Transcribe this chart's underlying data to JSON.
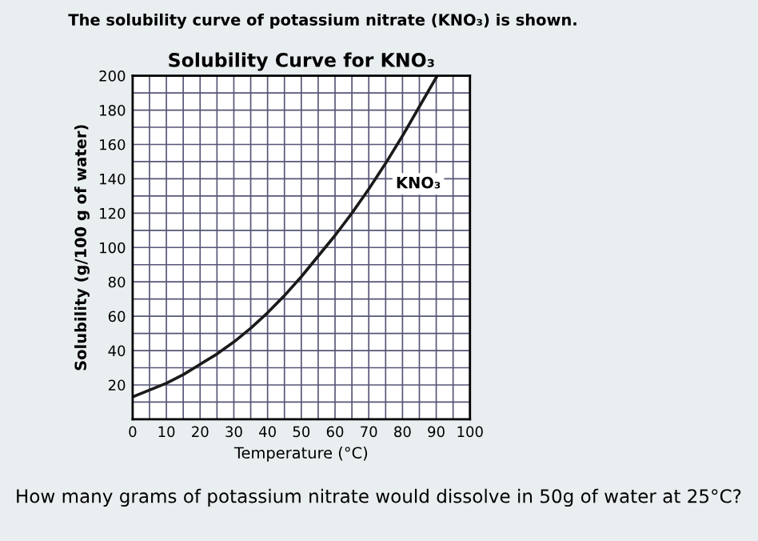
{
  "chart_data": {
    "type": "line",
    "title": "Solubility Curve for KNO₃",
    "xlabel": "Temperature (°C)",
    "ylabel": "Solubility (g/100 g of water)",
    "annotations": [
      "The solubility curve of potassium nitrate (KNO₃) is shown.",
      "How many grams of potassium nitrate would dissolve in 50g of water at 25°C?"
    ],
    "x": [
      0,
      5,
      10,
      15,
      20,
      25,
      30,
      35,
      40,
      45,
      50,
      55,
      60,
      65,
      70,
      75,
      80,
      85,
      90
    ],
    "series": [
      {
        "name": "KNO₃",
        "color": "#1a1a1a",
        "values": [
          13,
          17,
          21,
          26,
          32,
          38,
          45,
          53,
          62,
          72,
          83,
          95,
          107,
          120,
          134,
          149,
          165,
          182,
          199
        ]
      }
    ],
    "xlim": [
      0,
      100
    ],
    "ylim": [
      0,
      200
    ],
    "xticks": [
      0,
      10,
      20,
      30,
      40,
      50,
      60,
      70,
      80,
      90,
      100
    ],
    "yticks": [
      20,
      40,
      60,
      80,
      100,
      120,
      140,
      160,
      180,
      200
    ],
    "grid": true,
    "marker": "none",
    "line_style": "solid"
  }
}
